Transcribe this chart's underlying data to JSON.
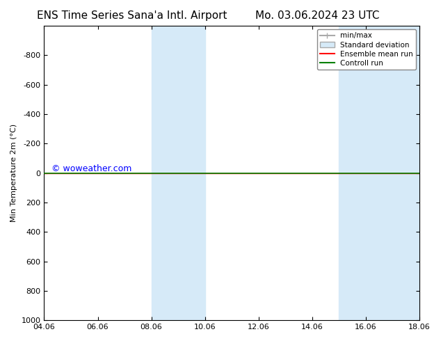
{
  "title_left": "ENS Time Series Sana'a Intl. Airport",
  "title_right": "Mo. 03.06.2024 23 UTC",
  "ylabel": "Min Temperature 2m (°C)",
  "xlabel_ticks": [
    "04.06",
    "06.06",
    "08.06",
    "10.06",
    "12.06",
    "14.06",
    "16.06",
    "18.06"
  ],
  "xlim_days": [
    0,
    14
  ],
  "ylim": [
    -1000,
    1000
  ],
  "yticks": [
    -800,
    -600,
    -400,
    -200,
    0,
    200,
    400,
    600,
    800,
    1000
  ],
  "shaded_regions": [
    {
      "xmin": 4.0,
      "xmax": 5.0,
      "color": "#d6eaf8"
    },
    {
      "xmin": 5.0,
      "xmax": 6.0,
      "color": "#d6eaf8"
    },
    {
      "xmin": 11.0,
      "xmax": 12.0,
      "color": "#d6eaf8"
    },
    {
      "xmin": 12.0,
      "xmax": 14.0,
      "color": "#d6eaf8"
    }
  ],
  "control_run_y": 0,
  "ensemble_mean_y": 0,
  "watermark": "© woweather.com",
  "background_color": "#ffffff",
  "plot_bg_color": "#ffffff",
  "x_tick_positions": [
    0,
    2,
    4,
    6,
    8,
    10,
    12,
    14
  ],
  "legend_fontsize": 7.5,
  "title_fontsize": 11
}
